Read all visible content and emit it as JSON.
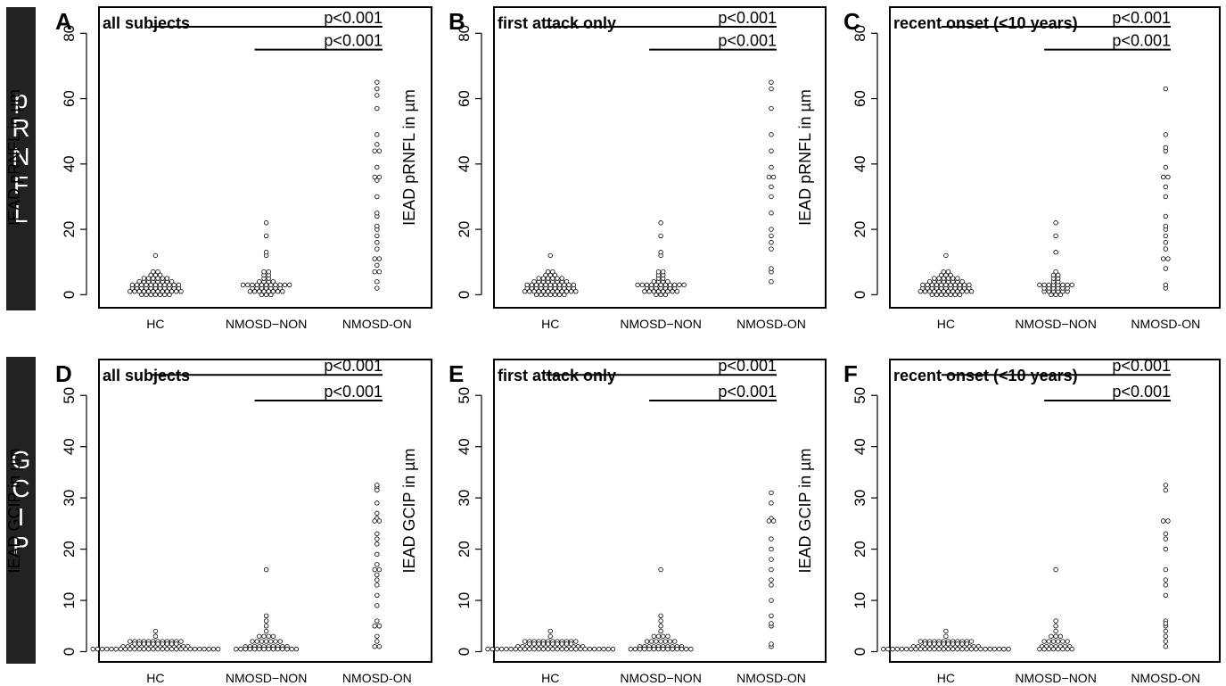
{
  "row_labels": [
    {
      "letters": [
        "p",
        "R",
        "N",
        "F",
        "L"
      ]
    },
    {
      "letters": [
        "G",
        "C",
        "I",
        "P"
      ]
    }
  ],
  "colors": {
    "row_bar": "#222222",
    "ink": "#000000",
    "background": "#ffffff"
  },
  "chart_data": [
    {
      "panel": "A",
      "type": "scatter",
      "title": "all subjects",
      "categories": [
        "HC",
        "NMOSD−NON",
        "NMOSD-ON"
      ],
      "ylabel": "IEAD pRNFL in µm",
      "ylim": [
        -4,
        88
      ],
      "yticks": [
        0,
        20,
        40,
        60,
        80
      ],
      "points": [
        [
          12,
          7,
          7,
          6,
          6,
          6,
          5,
          5,
          5,
          5,
          5,
          5,
          4,
          4,
          4,
          4,
          4,
          4,
          4,
          4,
          3,
          3,
          3,
          3,
          3,
          3,
          3,
          3,
          3,
          3,
          3,
          2,
          2,
          2,
          2,
          2,
          2,
          2,
          2,
          2,
          2,
          2,
          1,
          1,
          1,
          1,
          1,
          1,
          1,
          1,
          1,
          1,
          1,
          1,
          0,
          0,
          0,
          0,
          0,
          0,
          0
        ],
        [
          22,
          18,
          13,
          12,
          7,
          7,
          6,
          6,
          5,
          5,
          4,
          4,
          4,
          4,
          3,
          3,
          3,
          3,
          3,
          3,
          3,
          3,
          3,
          3,
          3,
          2,
          2,
          2,
          2,
          2,
          2,
          2,
          1,
          1,
          1,
          1,
          1,
          1,
          1,
          1,
          0,
          0,
          0
        ],
        [
          65,
          63,
          61,
          57,
          49,
          46,
          44,
          44,
          39,
          36,
          36,
          35,
          30,
          25,
          24,
          21,
          20,
          18,
          16,
          14,
          11,
          11,
          9,
          7,
          7,
          4,
          2
        ]
      ],
      "brackets": [
        {
          "from": 0,
          "to": 2,
          "y": 82,
          "label": "p<0.001"
        },
        {
          "from": 1,
          "to": 2,
          "y": 75,
          "label": "p<0.001"
        }
      ]
    },
    {
      "panel": "B",
      "type": "scatter",
      "title": "first attack only",
      "categories": [
        "HC",
        "NMOSD−NON",
        "NMOSD-ON"
      ],
      "ylabel": "IEAD pRNFL in µm",
      "ylim": [
        -4,
        88
      ],
      "yticks": [
        0,
        20,
        40,
        60,
        80
      ],
      "points": [
        [
          12,
          7,
          7,
          6,
          6,
          6,
          5,
          5,
          5,
          5,
          5,
          5,
          4,
          4,
          4,
          4,
          4,
          4,
          4,
          4,
          3,
          3,
          3,
          3,
          3,
          3,
          3,
          3,
          3,
          3,
          3,
          2,
          2,
          2,
          2,
          2,
          2,
          2,
          2,
          2,
          2,
          2,
          1,
          1,
          1,
          1,
          1,
          1,
          1,
          1,
          1,
          1,
          1,
          1,
          0,
          0,
          0,
          0,
          0,
          0,
          0
        ],
        [
          22,
          18,
          13,
          12,
          7,
          7,
          6,
          6,
          5,
          5,
          4,
          4,
          4,
          4,
          3,
          3,
          3,
          3,
          3,
          3,
          3,
          3,
          3,
          3,
          3,
          2,
          2,
          2,
          2,
          2,
          2,
          2,
          1,
          1,
          1,
          1,
          1,
          1,
          1,
          1,
          0,
          0,
          0
        ],
        [
          65,
          63,
          57,
          49,
          44,
          39,
          36,
          36,
          33,
          30,
          25,
          20,
          18,
          16,
          14,
          8,
          7,
          4
        ]
      ],
      "brackets": [
        {
          "from": 0,
          "to": 2,
          "y": 82,
          "label": "p<0.001"
        },
        {
          "from": 1,
          "to": 2,
          "y": 75,
          "label": "p<0.001"
        }
      ]
    },
    {
      "panel": "C",
      "type": "scatter",
      "title": "recent onset (<10 years)",
      "categories": [
        "HC",
        "NMOSD−NON",
        "NMOSD-ON"
      ],
      "ylabel": "IEAD pRNFL in µm",
      "ylim": [
        -4,
        88
      ],
      "yticks": [
        0,
        20,
        40,
        60,
        80
      ],
      "points": [
        [
          12,
          7,
          7,
          6,
          6,
          6,
          5,
          5,
          5,
          5,
          5,
          5,
          4,
          4,
          4,
          4,
          4,
          4,
          4,
          4,
          3,
          3,
          3,
          3,
          3,
          3,
          3,
          3,
          3,
          3,
          3,
          2,
          2,
          2,
          2,
          2,
          2,
          2,
          2,
          2,
          2,
          2,
          1,
          1,
          1,
          1,
          1,
          1,
          1,
          1,
          1,
          1,
          1,
          1,
          0,
          0,
          0,
          0,
          0,
          0,
          0
        ],
        [
          22,
          18,
          13,
          7,
          6,
          6,
          5,
          5,
          4,
          4,
          3,
          3,
          3,
          3,
          3,
          3,
          3,
          3,
          2,
          2,
          2,
          2,
          2,
          2,
          1,
          1,
          1,
          1,
          1,
          1,
          0,
          0,
          0
        ],
        [
          63,
          49,
          45,
          44,
          39,
          36,
          36,
          33,
          30,
          24,
          21,
          20,
          18,
          16,
          14,
          11,
          11,
          8,
          3,
          2
        ]
      ],
      "brackets": [
        {
          "from": 0,
          "to": 2,
          "y": 82,
          "label": "p<0.001"
        },
        {
          "from": 1,
          "to": 2,
          "y": 75,
          "label": "p<0.001"
        }
      ]
    },
    {
      "panel": "D",
      "type": "scatter",
      "title": "all subjects",
      "categories": [
        "HC",
        "NMOSD−NON",
        "NMOSD-ON"
      ],
      "ylabel": "IEAD GCIP in µm",
      "ylim": [
        -2,
        57
      ],
      "yticks": [
        0,
        10,
        20,
        30,
        40,
        50
      ],
      "points": [
        [
          4,
          3,
          2,
          2,
          2,
          2,
          2,
          2,
          2,
          2,
          2,
          2,
          2,
          2,
          1.5,
          1.5,
          1.5,
          1.5,
          1.5,
          1.5,
          1.5,
          1.5,
          1.5,
          1.5,
          1,
          1,
          1,
          1,
          1,
          1,
          1,
          1,
          1,
          1,
          1,
          1,
          1,
          1,
          1,
          0.5,
          0.5,
          0.5,
          0.5,
          0.5,
          0.5,
          0.5,
          0.5,
          0.5,
          0.5,
          0.5,
          0.5,
          0.5,
          0.5,
          0.5,
          0.5,
          0.5,
          0.5,
          0.5,
          0.5,
          0.5,
          0.5,
          0.5,
          0.5,
          0.5,
          0.5,
          0.5,
          0.5
        ],
        [
          16,
          7,
          6,
          5,
          4,
          3,
          3,
          3,
          3,
          2,
          2,
          2,
          2,
          2,
          2,
          2,
          1,
          1,
          1,
          1,
          1,
          1,
          1,
          1,
          1,
          1,
          0.5,
          0.5,
          0.5,
          0.5,
          0.5,
          0.5,
          0.5,
          0.5,
          0.5,
          0.5,
          0.5,
          0.5,
          0.5,
          0.5
        ],
        [
          32.5,
          32,
          31.5,
          29,
          27,
          26,
          25.5,
          25.5,
          23,
          22,
          21,
          19,
          17,
          16,
          16,
          15,
          14,
          13,
          11,
          9,
          6,
          5,
          5,
          3,
          2,
          1,
          1
        ]
      ],
      "brackets": [
        {
          "from": 0,
          "to": 2,
          "y": 54,
          "label": "p<0.001"
        },
        {
          "from": 1,
          "to": 2,
          "y": 49,
          "label": "p<0.001"
        }
      ]
    },
    {
      "panel": "E",
      "type": "scatter",
      "title": "first attack only",
      "categories": [
        "HC",
        "NMOSD−NON",
        "NMOSD-ON"
      ],
      "ylabel": "IEAD GCIP in µm",
      "ylim": [
        -2,
        57
      ],
      "yticks": [
        0,
        10,
        20,
        30,
        40,
        50
      ],
      "points": [
        [
          4,
          3,
          2,
          2,
          2,
          2,
          2,
          2,
          2,
          2,
          2,
          2,
          2,
          2,
          1.5,
          1.5,
          1.5,
          1.5,
          1.5,
          1.5,
          1.5,
          1.5,
          1.5,
          1.5,
          1,
          1,
          1,
          1,
          1,
          1,
          1,
          1,
          1,
          1,
          1,
          1,
          1,
          1,
          1,
          0.5,
          0.5,
          0.5,
          0.5,
          0.5,
          0.5,
          0.5,
          0.5,
          0.5,
          0.5,
          0.5,
          0.5,
          0.5,
          0.5,
          0.5,
          0.5,
          0.5,
          0.5,
          0.5,
          0.5,
          0.5,
          0.5,
          0.5,
          0.5,
          0.5,
          0.5,
          0.5,
          0.5
        ],
        [
          16,
          7,
          6,
          5,
          4,
          3,
          3,
          3,
          3,
          2,
          2,
          2,
          2,
          2,
          2,
          2,
          1,
          1,
          1,
          1,
          1,
          1,
          1,
          1,
          1,
          1,
          0.5,
          0.5,
          0.5,
          0.5,
          0.5,
          0.5,
          0.5,
          0.5,
          0.5,
          0.5,
          0.5,
          0.5,
          0.5,
          0.5
        ],
        [
          31,
          29,
          26,
          25.5,
          25.5,
          22,
          20,
          18,
          16,
          14,
          13,
          10,
          7,
          5.5,
          5,
          1.5,
          1
        ]
      ],
      "brackets": [
        {
          "from": 0,
          "to": 2,
          "y": 54,
          "label": "p<0.001"
        },
        {
          "from": 1,
          "to": 2,
          "y": 49,
          "label": "p<0.001"
        }
      ]
    },
    {
      "panel": "F",
      "type": "scatter",
      "title": "recent onset (<10 years)",
      "categories": [
        "HC",
        "NMOSD−NON",
        "NMOSD-ON"
      ],
      "ylabel": "IEAD GCIP in µm",
      "ylim": [
        -2,
        57
      ],
      "yticks": [
        0,
        10,
        20,
        30,
        40,
        50
      ],
      "points": [
        [
          4,
          3,
          2,
          2,
          2,
          2,
          2,
          2,
          2,
          2,
          2,
          2,
          2,
          2,
          1.5,
          1.5,
          1.5,
          1.5,
          1.5,
          1.5,
          1.5,
          1.5,
          1.5,
          1.5,
          1,
          1,
          1,
          1,
          1,
          1,
          1,
          1,
          1,
          1,
          1,
          1,
          1,
          1,
          1,
          0.5,
          0.5,
          0.5,
          0.5,
          0.5,
          0.5,
          0.5,
          0.5,
          0.5,
          0.5,
          0.5,
          0.5,
          0.5,
          0.5,
          0.5,
          0.5,
          0.5,
          0.5,
          0.5,
          0.5,
          0.5,
          0.5,
          0.5,
          0.5,
          0.5,
          0.5,
          0.5,
          0.5
        ],
        [
          16,
          6,
          5,
          4,
          3,
          3,
          3,
          2,
          2,
          2,
          2,
          2,
          2,
          1,
          1,
          1,
          1,
          1,
          1,
          1,
          0.5,
          0.5,
          0.5,
          0.5,
          0.5,
          0.5,
          0.5,
          0.5
        ],
        [
          32.5,
          31.5,
          25.5,
          25.5,
          23,
          22,
          20,
          16,
          14,
          13,
          11,
          6,
          5.5,
          5,
          4,
          3,
          2,
          1
        ]
      ],
      "brackets": [
        {
          "from": 0,
          "to": 2,
          "y": 54,
          "label": "p<0.001"
        },
        {
          "from": 1,
          "to": 2,
          "y": 49,
          "label": "p<0.001"
        }
      ]
    }
  ]
}
